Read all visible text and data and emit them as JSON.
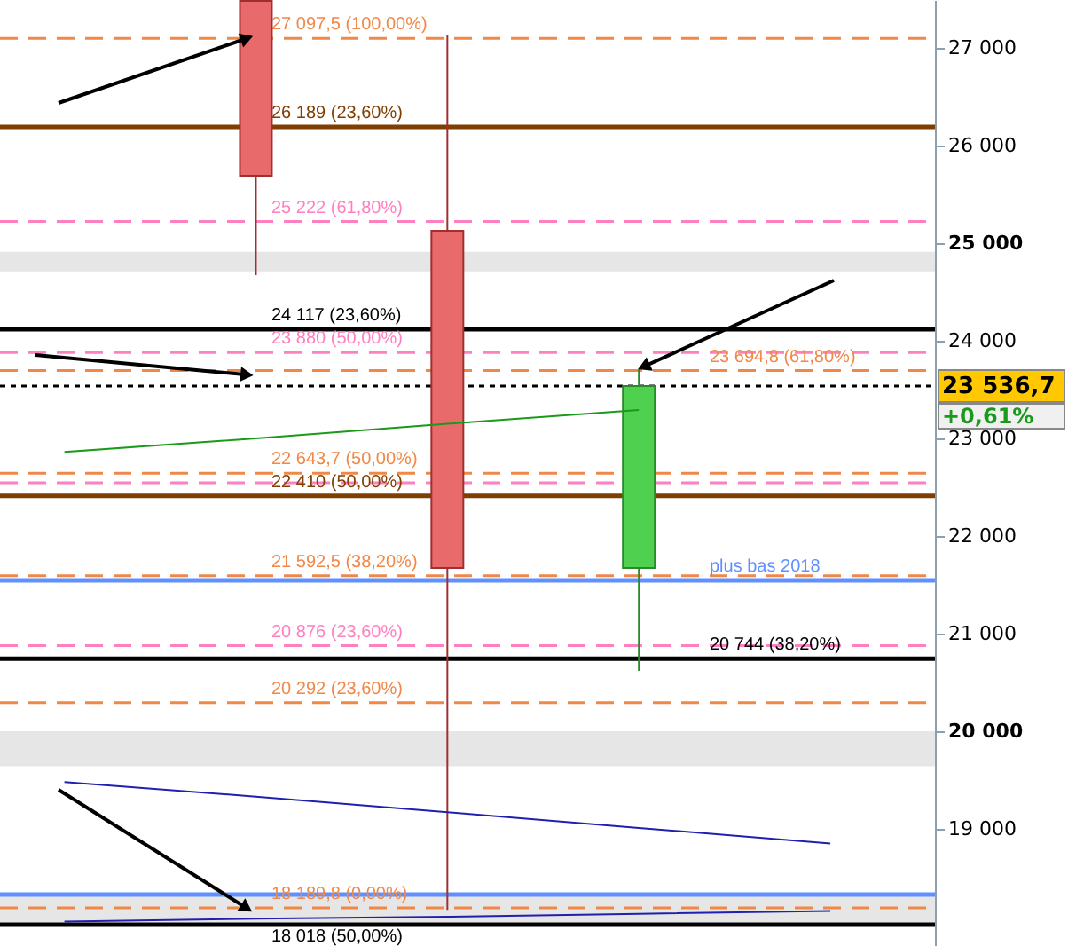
{
  "chart_data": {
    "type": "candlestick",
    "categories": [
      null,
      null,
      null,
      null,
      null
    ],
    "ohlc": [
      null,
      [
        27480,
        27480,
        24673,
        25691
      ],
      [
        25127,
        27130,
        18170,
        21673
      ],
      [
        21673,
        23709,
        20618,
        23536.7
      ],
      null
    ],
    "colors": [
      null,
      "#e86a6a",
      "#e86a6a",
      "#4fd04f",
      null
    ],
    "series": [
      {
        "type": "line",
        "values": [
          22860,
          23000,
          23150,
          23290,
          null
        ],
        "color": "#1a9a1a"
      },
      {
        "type": "line",
        "values": [
          19480,
          19330,
          19170,
          19010,
          18850
        ],
        "color": "#2020b0"
      },
      {
        "type": "line",
        "values": [
          18050,
          18080,
          18100,
          18130,
          18160
        ],
        "color": "#2020b0"
      }
    ],
    "ylim": [
      17800,
      27490
    ],
    "yticks": [
      {
        "value": 19000,
        "label": "19 000"
      },
      {
        "value": 20000,
        "label": "20 000"
      },
      {
        "value": 21000,
        "label": "21 000"
      },
      {
        "value": 22000,
        "label": "22 000"
      },
      {
        "value": 23000,
        "label": "23 000"
      },
      {
        "value": 24000,
        "label": "24 000"
      },
      {
        "value": 25000,
        "label": "25 000"
      },
      {
        "value": 26000,
        "label": "26 000"
      },
      {
        "value": 27000,
        "label": "27 000"
      }
    ],
    "bands": [
      {
        "axis": "y",
        "from": 24710,
        "to": 24910,
        "color": "#e6e6e6"
      },
      {
        "axis": "y",
        "from": 19640,
        "to": 20000,
        "color": "#e6e6e6"
      },
      {
        "axis": "y",
        "from": 18040,
        "to": 18330,
        "color": "#e6e6e6"
      }
    ],
    "ref_lines": [
      {
        "axis": "y",
        "value": 27097.5,
        "label": "27 097,5 (100,00%)",
        "color": "#f08848",
        "line_style": "dashed"
      },
      {
        "axis": "y",
        "value": 26189,
        "label": "26 189 (23,60%)",
        "color": "#7f3f00",
        "line_style": "solid"
      },
      {
        "axis": "y",
        "value": 25222,
        "label": "25 222 (61,80%)",
        "color": "#ff80c0",
        "line_style": "dashed"
      },
      {
        "axis": "y",
        "value": 24117,
        "label": "24 117 (23,60%)",
        "color": "#000000",
        "line_style": "solid"
      },
      {
        "axis": "y",
        "value": 23880,
        "label": "23 880 (50,00%)",
        "color": "#ff80c0",
        "line_style": "dashed"
      },
      {
        "axis": "y",
        "value": 23694.8,
        "label": "23 694,8 (61,80%)",
        "color": "#f08848",
        "line_style": "dashed"
      },
      {
        "axis": "y",
        "value": 23536.7,
        "color": "#000000",
        "line_style": "dotted"
      },
      {
        "axis": "y",
        "value": 22643.7,
        "label": "22 643,7 (50,00%)",
        "color": "#f08848",
        "line_style": "dashed"
      },
      {
        "axis": "y",
        "value": 22545,
        "color": "#ff80c0",
        "line_style": "dashed"
      },
      {
        "axis": "y",
        "value": 22410,
        "label": "22 410 (50,00%)",
        "color": "#7f3f00",
        "line_style": "solid"
      },
      {
        "axis": "y",
        "value": 21592.5,
        "label": "21 592,5 (38,20%)",
        "color": "#f08848",
        "line_style": "dashed"
      },
      {
        "axis": "y",
        "value": 21545,
        "label": "plus bas 2018",
        "color": "#6090ff",
        "line_style": "solid"
      },
      {
        "axis": "y",
        "value": 20876,
        "label": "20 876 (23,60%)",
        "color": "#ff80c0",
        "line_style": "dashed"
      },
      {
        "axis": "y",
        "value": 20744,
        "label": "20 744 (38,20%)",
        "color": "#000000",
        "line_style": "solid"
      },
      {
        "axis": "y",
        "value": 20292,
        "label": "20 292 (23,60%)",
        "color": "#f08848",
        "line_style": "dashed"
      },
      {
        "axis": "y",
        "value": 18327,
        "color": "#6090ff",
        "line_style": "solid"
      },
      {
        "axis": "y",
        "value": 18189.8,
        "label": "18 189,8 (0,00%)",
        "color": "#f08848",
        "line_style": "dashed"
      },
      {
        "axis": "y",
        "value": 18018,
        "label": "18 018 (50,00%)",
        "color": "#000000",
        "line_style": "solid"
      }
    ],
    "annotations": [
      "23 536,7",
      "+0,61%"
    ],
    "grid": false
  }
}
